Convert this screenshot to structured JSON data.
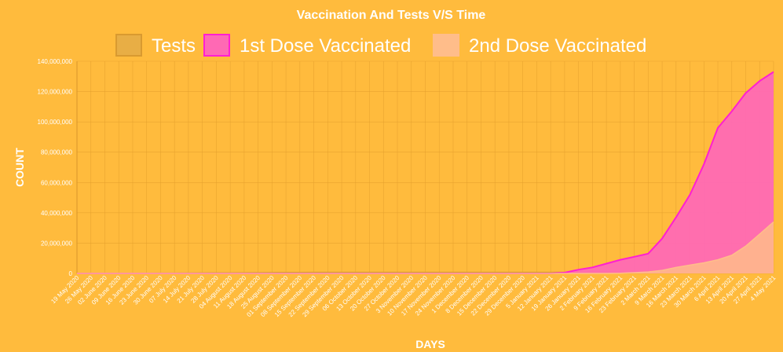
{
  "chart_data": {
    "type": "area",
    "title": "Vaccination And Tests V/S Time",
    "xlabel": "DAYS",
    "ylabel": "COUNT",
    "ylim": [
      0,
      140000000
    ],
    "y_ticks": [
      "0",
      "20,000,000",
      "40,000,000",
      "60,000,000",
      "80,000,000",
      "100,000,000",
      "120,000,000",
      "140,000,000"
    ],
    "grid": true,
    "legend_position": "top",
    "categories": [
      "19 May 2020",
      "26 May 2020",
      "02 June 2020",
      "09 June 2020",
      "16 June 2020",
      "23 June 2020",
      "30 June 2020",
      "07 July 2020",
      "14 July 2020",
      "21 July 2020",
      "28 July 2020",
      "04 August 2020",
      "11 August 2020",
      "18 August 2020",
      "25 August 2020",
      "01 September 2020",
      "08 September 2020",
      "15 September 2020",
      "22 September 2020",
      "29 September 2020",
      "06 October 2020",
      "13 October 2020",
      "20 October 2020",
      "27 October 2020",
      "3 November 2020",
      "10 November 2020",
      "17 November 2020",
      "24 November 2020",
      "1 December 2020",
      "8 December 2020",
      "15 December 2020",
      "22 December 2020",
      "29 December 2020",
      "5 January 2021",
      "12 January 2021",
      "19 January 2021",
      "26 January 2021",
      "2 February 2021",
      "9 February 2021",
      "16 February 2021",
      "23 February 2021",
      "2 March 2021",
      "9 March 2021",
      "16 March 2021",
      "23 March 2021",
      "30 March 2021",
      "6 April 2021",
      "13 April 2021",
      "20 April 2021",
      "27 April 2021",
      "4 May 2021"
    ],
    "series": [
      {
        "name": "Tests",
        "color": "#E8AE45",
        "border": "#D99A30",
        "values": [
          100000,
          100000,
          120000,
          130000,
          150000,
          170000,
          200000,
          230000,
          260000,
          300000,
          350000,
          400000,
          450000,
          500000,
          550000,
          600000,
          650000,
          700000,
          700000,
          700000,
          700000,
          700000,
          700000,
          700000,
          700000,
          700000,
          700000,
          700000,
          700000,
          700000,
          700000,
          700000,
          700000,
          700000,
          700000,
          750000,
          800000,
          850000,
          900000,
          950000,
          1000000,
          1050000,
          1100000,
          1200000,
          1300000,
          1400000,
          1500000,
          1600000,
          1700000,
          1800000,
          1900000
        ]
      },
      {
        "name": "1st Dose Vaccinated",
        "color": "#FF69B4",
        "border": "#FF1FD2",
        "values": [
          0,
          0,
          0,
          0,
          0,
          0,
          0,
          0,
          0,
          0,
          0,
          0,
          0,
          0,
          0,
          0,
          0,
          0,
          0,
          0,
          0,
          0,
          0,
          0,
          0,
          0,
          0,
          0,
          0,
          0,
          0,
          0,
          0,
          0,
          0,
          500000,
          2500000,
          4000000,
          6500000,
          9000000,
          11000000,
          13000000,
          23000000,
          37000000,
          52000000,
          72000000,
          96000000,
          107000000,
          119000000,
          127000000,
          133000000
        ]
      },
      {
        "name": "2nd Dose Vaccinated",
        "color": "#FFBD8A",
        "border": "#FFBD8A",
        "values": [
          0,
          0,
          0,
          0,
          0,
          0,
          0,
          0,
          0,
          0,
          0,
          0,
          0,
          0,
          0,
          0,
          0,
          0,
          0,
          0,
          0,
          0,
          0,
          0,
          0,
          0,
          0,
          0,
          0,
          0,
          0,
          0,
          0,
          0,
          0,
          0,
          0,
          0,
          0,
          100000,
          500000,
          1000000,
          2000000,
          4000000,
          5500000,
          7000000,
          9000000,
          12000000,
          18000000,
          26000000,
          34000000
        ]
      }
    ]
  }
}
